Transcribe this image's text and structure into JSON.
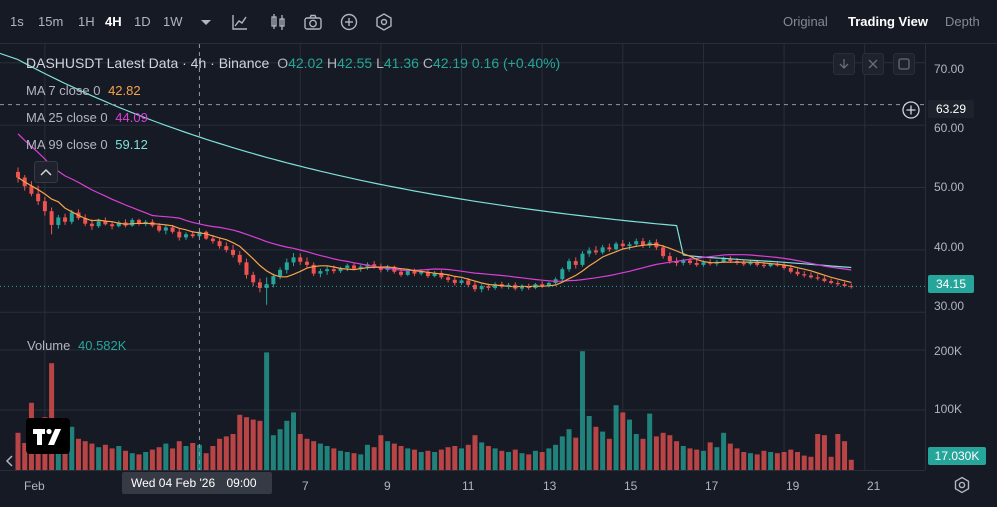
{
  "toolbar": {
    "timeframes": [
      "1s",
      "15m",
      "1H",
      "4H",
      "1D",
      "1W"
    ],
    "active_timeframe": "4H",
    "icons": [
      "chevron-down-icon",
      "indicators-icon",
      "candles-icon",
      "camera-icon",
      "add-circle-icon",
      "settings-hex-icon"
    ],
    "view_tabs": [
      "Original",
      "Trading View",
      "Depth"
    ],
    "active_view": "Trading View"
  },
  "legend": {
    "symbol_title": "DASHUSDT Latest Data · 4h · Binance",
    "ohlc": {
      "o_label": "O",
      "o": "42.02",
      "h_label": "H",
      "h": "42.55",
      "l_label": "L",
      "l": "41.36",
      "c_label": "C",
      "c": "42.19",
      "change": "0.16 (+0.40%)"
    },
    "ma7": {
      "label": "MA 7 close 0",
      "value": "42.82",
      "color": "#f7a34a"
    },
    "ma25": {
      "label": "MA 25 close 0",
      "value": "44.09",
      "color": "#d940d6"
    },
    "ma99": {
      "label": "MA 99 close 0",
      "value": "59.12",
      "color": "#7fe0d8"
    },
    "volume": {
      "label": "Volume",
      "value": "40.582K"
    }
  },
  "price_axis": {
    "ticks": [
      "70.00",
      "60.00",
      "50.00",
      "40.00",
      "30.00"
    ],
    "crosshair_price": "63.29",
    "last_price": "34.15",
    "last_price_color": "#26a69a"
  },
  "volume_axis": {
    "ticks": [
      "200K",
      "100K"
    ],
    "last_volume": "17.030K"
  },
  "time_axis": {
    "labels": [
      "Feb",
      "7",
      "9",
      "11",
      "13",
      "15",
      "17",
      "19",
      "21"
    ],
    "crosshair_time": "Wed 04 Feb '26",
    "crosshair_clock": "09:00"
  },
  "colors": {
    "up": "#26a69a",
    "down": "#ef5350",
    "background": "#161a25",
    "grid": "#2a2e39"
  },
  "chart_data": {
    "type": "candlestick",
    "symbol": "DASHUSDT",
    "interval": "4h",
    "exchange": "Binance",
    "y_range": [
      27,
      73
    ],
    "volume_range": [
      0,
      210000
    ],
    "date_ticks": [
      {
        "label": "Feb",
        "index": 4
      },
      {
        "label": "7",
        "index": 42
      },
      {
        "label": "9",
        "index": 54
      },
      {
        "label": "11",
        "index": 66
      },
      {
        "label": "13",
        "index": 78
      },
      {
        "label": "15",
        "index": 90
      },
      {
        "label": "17",
        "index": 102
      },
      {
        "label": "19",
        "index": 114
      },
      {
        "label": "21",
        "index": 126
      }
    ],
    "crosshair": {
      "index": 27,
      "price": 63.29
    },
    "candles": [
      {
        "o": 52.5,
        "h": 53.2,
        "l": 50.8,
        "c": 51.6,
        "v": 62000
      },
      {
        "o": 51.6,
        "h": 52.0,
        "l": 49.5,
        "c": 50.2,
        "v": 45000
      },
      {
        "o": 50.2,
        "h": 51.0,
        "l": 48.6,
        "c": 49.0,
        "v": 112000
      },
      {
        "o": 49.0,
        "h": 50.3,
        "l": 47.2,
        "c": 47.8,
        "v": 58000
      },
      {
        "o": 47.8,
        "h": 48.5,
        "l": 45.5,
        "c": 46.2,
        "v": 88000
      },
      {
        "o": 46.2,
        "h": 46.8,
        "l": 42.5,
        "c": 44.0,
        "v": 178000
      },
      {
        "o": 44.0,
        "h": 45.6,
        "l": 43.4,
        "c": 45.2,
        "v": 60000
      },
      {
        "o": 45.2,
        "h": 45.8,
        "l": 44.0,
        "c": 44.5,
        "v": 48000
      },
      {
        "o": 44.5,
        "h": 46.4,
        "l": 44.1,
        "c": 46.0,
        "v": 72000
      },
      {
        "o": 46.0,
        "h": 46.5,
        "l": 44.8,
        "c": 45.1,
        "v": 52000
      },
      {
        "o": 45.1,
        "h": 45.7,
        "l": 43.8,
        "c": 44.2,
        "v": 48000
      },
      {
        "o": 44.2,
        "h": 44.9,
        "l": 43.2,
        "c": 43.8,
        "v": 44000
      },
      {
        "o": 43.8,
        "h": 45.0,
        "l": 43.5,
        "c": 44.6,
        "v": 38000
      },
      {
        "o": 44.6,
        "h": 45.2,
        "l": 43.9,
        "c": 44.1,
        "v": 42000
      },
      {
        "o": 44.1,
        "h": 44.6,
        "l": 43.3,
        "c": 43.8,
        "v": 36000
      },
      {
        "o": 43.8,
        "h": 44.7,
        "l": 43.6,
        "c": 44.4,
        "v": 40000
      },
      {
        "o": 44.4,
        "h": 44.9,
        "l": 43.6,
        "c": 43.9,
        "v": 32000
      },
      {
        "o": 43.9,
        "h": 45.1,
        "l": 43.7,
        "c": 44.8,
        "v": 28000
      },
      {
        "o": 44.8,
        "h": 45.0,
        "l": 43.9,
        "c": 44.2,
        "v": 26000
      },
      {
        "o": 44.2,
        "h": 44.8,
        "l": 43.8,
        "c": 44.5,
        "v": 30000
      },
      {
        "o": 44.5,
        "h": 44.9,
        "l": 43.6,
        "c": 43.9,
        "v": 34000
      },
      {
        "o": 43.9,
        "h": 44.3,
        "l": 42.8,
        "c": 43.1,
        "v": 38000
      },
      {
        "o": 43.1,
        "h": 43.9,
        "l": 42.5,
        "c": 43.6,
        "v": 44000
      },
      {
        "o": 43.6,
        "h": 44.0,
        "l": 42.6,
        "c": 42.9,
        "v": 36000
      },
      {
        "o": 42.9,
        "h": 43.4,
        "l": 41.5,
        "c": 42.0,
        "v": 48000
      },
      {
        "o": 42.0,
        "h": 42.8,
        "l": 41.6,
        "c": 42.5,
        "v": 40000
      },
      {
        "o": 42.5,
        "h": 43.0,
        "l": 41.9,
        "c": 42.2,
        "v": 45000
      },
      {
        "o": 42.2,
        "h": 43.2,
        "l": 42.0,
        "c": 42.9,
        "v": 42000
      },
      {
        "o": 42.9,
        "h": 43.1,
        "l": 41.6,
        "c": 41.8,
        "v": 28000
      },
      {
        "o": 41.8,
        "h": 42.4,
        "l": 41.0,
        "c": 41.4,
        "v": 40000
      },
      {
        "o": 41.4,
        "h": 41.9,
        "l": 40.2,
        "c": 40.6,
        "v": 52000
      },
      {
        "o": 40.6,
        "h": 41.2,
        "l": 39.6,
        "c": 40.0,
        "v": 56000
      },
      {
        "o": 40.0,
        "h": 40.8,
        "l": 38.8,
        "c": 39.2,
        "v": 60000
      },
      {
        "o": 39.2,
        "h": 39.8,
        "l": 37.6,
        "c": 38.0,
        "v": 92000
      },
      {
        "o": 38.0,
        "h": 38.6,
        "l": 35.4,
        "c": 36.0,
        "v": 88000
      },
      {
        "o": 36.0,
        "h": 36.5,
        "l": 34.2,
        "c": 34.8,
        "v": 84000
      },
      {
        "o": 34.8,
        "h": 35.4,
        "l": 33.2,
        "c": 33.9,
        "v": 82000
      },
      {
        "o": 33.9,
        "h": 35.6,
        "l": 31.2,
        "c": 34.5,
        "v": 196000
      },
      {
        "o": 34.5,
        "h": 36.2,
        "l": 34.0,
        "c": 35.8,
        "v": 58000
      },
      {
        "o": 35.8,
        "h": 37.2,
        "l": 35.3,
        "c": 36.8,
        "v": 68000
      },
      {
        "o": 36.8,
        "h": 38.6,
        "l": 36.2,
        "c": 38.0,
        "v": 82000
      },
      {
        "o": 38.0,
        "h": 39.5,
        "l": 37.4,
        "c": 38.8,
        "v": 96000
      },
      {
        "o": 38.8,
        "h": 39.4,
        "l": 37.6,
        "c": 38.1,
        "v": 60000
      },
      {
        "o": 38.1,
        "h": 38.8,
        "l": 37.2,
        "c": 37.6,
        "v": 52000
      },
      {
        "o": 37.6,
        "h": 38.0,
        "l": 35.8,
        "c": 36.2,
        "v": 48000
      },
      {
        "o": 36.2,
        "h": 37.0,
        "l": 35.6,
        "c": 36.6,
        "v": 44000
      },
      {
        "o": 36.6,
        "h": 37.4,
        "l": 36.0,
        "c": 36.9,
        "v": 40000
      },
      {
        "o": 36.9,
        "h": 37.5,
        "l": 36.2,
        "c": 36.6,
        "v": 36000
      },
      {
        "o": 36.6,
        "h": 37.3,
        "l": 36.3,
        "c": 37.1,
        "v": 32000
      },
      {
        "o": 37.1,
        "h": 37.8,
        "l": 36.6,
        "c": 37.5,
        "v": 30000
      },
      {
        "o": 37.5,
        "h": 37.9,
        "l": 36.8,
        "c": 37.0,
        "v": 28000
      },
      {
        "o": 37.0,
        "h": 37.6,
        "l": 36.5,
        "c": 37.3,
        "v": 26000
      },
      {
        "o": 37.3,
        "h": 38.0,
        "l": 36.8,
        "c": 37.7,
        "v": 42000
      },
      {
        "o": 37.7,
        "h": 38.2,
        "l": 37.0,
        "c": 37.3,
        "v": 38000
      },
      {
        "o": 37.3,
        "h": 37.8,
        "l": 36.4,
        "c": 36.8,
        "v": 58000
      },
      {
        "o": 36.8,
        "h": 37.6,
        "l": 36.5,
        "c": 37.3,
        "v": 48000
      },
      {
        "o": 37.3,
        "h": 37.5,
        "l": 36.2,
        "c": 36.5,
        "v": 44000
      },
      {
        "o": 36.5,
        "h": 37.1,
        "l": 35.7,
        "c": 36.0,
        "v": 40000
      },
      {
        "o": 36.0,
        "h": 36.8,
        "l": 35.8,
        "c": 36.6,
        "v": 36000
      },
      {
        "o": 36.6,
        "h": 37.0,
        "l": 35.8,
        "c": 36.2,
        "v": 34000
      },
      {
        "o": 36.2,
        "h": 36.9,
        "l": 35.9,
        "c": 36.5,
        "v": 30000
      },
      {
        "o": 36.5,
        "h": 36.8,
        "l": 35.5,
        "c": 35.8,
        "v": 32000
      },
      {
        "o": 35.8,
        "h": 36.6,
        "l": 35.6,
        "c": 36.3,
        "v": 30000
      },
      {
        "o": 36.3,
        "h": 36.7,
        "l": 35.3,
        "c": 35.6,
        "v": 34000
      },
      {
        "o": 35.6,
        "h": 36.0,
        "l": 34.8,
        "c": 35.2,
        "v": 38000
      },
      {
        "o": 35.2,
        "h": 35.7,
        "l": 34.3,
        "c": 34.7,
        "v": 40000
      },
      {
        "o": 34.7,
        "h": 35.4,
        "l": 34.4,
        "c": 35.1,
        "v": 36000
      },
      {
        "o": 35.1,
        "h": 35.5,
        "l": 34.0,
        "c": 34.4,
        "v": 42000
      },
      {
        "o": 34.4,
        "h": 34.9,
        "l": 33.3,
        "c": 33.7,
        "v": 58000
      },
      {
        "o": 33.7,
        "h": 34.5,
        "l": 33.2,
        "c": 34.2,
        "v": 46000
      },
      {
        "o": 34.2,
        "h": 34.6,
        "l": 33.5,
        "c": 33.9,
        "v": 40000
      },
      {
        "o": 33.9,
        "h": 34.8,
        "l": 33.6,
        "c": 34.5,
        "v": 36000
      },
      {
        "o": 34.5,
        "h": 34.9,
        "l": 33.8,
        "c": 34.1,
        "v": 32000
      },
      {
        "o": 34.1,
        "h": 34.7,
        "l": 33.7,
        "c": 34.4,
        "v": 30000
      },
      {
        "o": 34.4,
        "h": 34.8,
        "l": 33.5,
        "c": 33.8,
        "v": 34000
      },
      {
        "o": 33.8,
        "h": 34.5,
        "l": 33.4,
        "c": 34.2,
        "v": 28000
      },
      {
        "o": 34.2,
        "h": 34.6,
        "l": 33.6,
        "c": 33.9,
        "v": 26000
      },
      {
        "o": 33.9,
        "h": 34.7,
        "l": 33.7,
        "c": 34.5,
        "v": 32000
      },
      {
        "o": 34.5,
        "h": 35.0,
        "l": 33.9,
        "c": 34.2,
        "v": 30000
      },
      {
        "o": 34.2,
        "h": 34.9,
        "l": 34.0,
        "c": 34.7,
        "v": 36000
      },
      {
        "o": 34.7,
        "h": 35.6,
        "l": 34.4,
        "c": 35.3,
        "v": 42000
      },
      {
        "o": 35.3,
        "h": 37.2,
        "l": 35.0,
        "c": 36.9,
        "v": 56000
      },
      {
        "o": 36.9,
        "h": 38.6,
        "l": 36.5,
        "c": 38.2,
        "v": 68000
      },
      {
        "o": 38.2,
        "h": 38.8,
        "l": 37.0,
        "c": 37.6,
        "v": 54000
      },
      {
        "o": 37.6,
        "h": 39.8,
        "l": 37.3,
        "c": 39.4,
        "v": 198000
      },
      {
        "o": 39.4,
        "h": 40.4,
        "l": 38.9,
        "c": 39.9,
        "v": 90000
      },
      {
        "o": 39.9,
        "h": 40.6,
        "l": 39.2,
        "c": 39.6,
        "v": 72000
      },
      {
        "o": 39.6,
        "h": 40.8,
        "l": 39.3,
        "c": 40.4,
        "v": 64000
      },
      {
        "o": 40.4,
        "h": 41.0,
        "l": 39.7,
        "c": 40.1,
        "v": 52000
      },
      {
        "o": 40.1,
        "h": 41.3,
        "l": 39.9,
        "c": 41.0,
        "v": 108000
      },
      {
        "o": 41.0,
        "h": 41.6,
        "l": 40.2,
        "c": 40.6,
        "v": 96000
      },
      {
        "o": 40.6,
        "h": 41.3,
        "l": 40.0,
        "c": 40.9,
        "v": 84000
      },
      {
        "o": 40.9,
        "h": 41.8,
        "l": 40.5,
        "c": 41.4,
        "v": 60000
      },
      {
        "o": 41.4,
        "h": 41.9,
        "l": 40.3,
        "c": 40.7,
        "v": 52000
      },
      {
        "o": 40.7,
        "h": 41.6,
        "l": 40.3,
        "c": 41.2,
        "v": 94000
      },
      {
        "o": 41.2,
        "h": 41.7,
        "l": 40.0,
        "c": 40.4,
        "v": 56000
      },
      {
        "o": 40.4,
        "h": 40.8,
        "l": 38.6,
        "c": 39.0,
        "v": 62000
      },
      {
        "o": 39.0,
        "h": 39.6,
        "l": 37.8,
        "c": 38.2,
        "v": 58000
      },
      {
        "o": 38.2,
        "h": 38.8,
        "l": 37.4,
        "c": 37.9,
        "v": 48000
      },
      {
        "o": 37.9,
        "h": 38.6,
        "l": 37.5,
        "c": 38.3,
        "v": 40000
      },
      {
        "o": 38.3,
        "h": 38.7,
        "l": 37.6,
        "c": 37.9,
        "v": 36000
      },
      {
        "o": 37.9,
        "h": 38.4,
        "l": 37.3,
        "c": 37.6,
        "v": 34000
      },
      {
        "o": 37.6,
        "h": 38.3,
        "l": 37.3,
        "c": 38.0,
        "v": 32000
      },
      {
        "o": 38.0,
        "h": 38.5,
        "l": 37.5,
        "c": 37.8,
        "v": 46000
      },
      {
        "o": 37.8,
        "h": 38.4,
        "l": 37.4,
        "c": 38.1,
        "v": 38000
      },
      {
        "o": 38.1,
        "h": 38.9,
        "l": 37.9,
        "c": 38.6,
        "v": 62000
      },
      {
        "o": 38.6,
        "h": 39.0,
        "l": 37.9,
        "c": 38.2,
        "v": 44000
      },
      {
        "o": 38.2,
        "h": 38.7,
        "l": 37.6,
        "c": 37.9,
        "v": 36000
      },
      {
        "o": 37.9,
        "h": 38.4,
        "l": 37.4,
        "c": 37.7,
        "v": 30000
      },
      {
        "o": 37.7,
        "h": 38.3,
        "l": 37.5,
        "c": 38.0,
        "v": 28000
      },
      {
        "o": 38.0,
        "h": 38.4,
        "l": 37.3,
        "c": 37.6,
        "v": 26000
      },
      {
        "o": 37.6,
        "h": 38.0,
        "l": 37.1,
        "c": 37.4,
        "v": 32000
      },
      {
        "o": 37.4,
        "h": 38.0,
        "l": 37.2,
        "c": 37.8,
        "v": 30000
      },
      {
        "o": 37.8,
        "h": 38.2,
        "l": 37.3,
        "c": 37.5,
        "v": 28000
      },
      {
        "o": 37.5,
        "h": 37.9,
        "l": 36.8,
        "c": 37.1,
        "v": 30000
      },
      {
        "o": 37.1,
        "h": 37.6,
        "l": 36.2,
        "c": 36.5,
        "v": 34000
      },
      {
        "o": 36.5,
        "h": 37.0,
        "l": 35.8,
        "c": 36.1,
        "v": 30000
      },
      {
        "o": 36.1,
        "h": 36.6,
        "l": 35.6,
        "c": 35.9,
        "v": 24000
      },
      {
        "o": 35.9,
        "h": 36.4,
        "l": 35.4,
        "c": 35.6,
        "v": 22000
      },
      {
        "o": 35.6,
        "h": 36.1,
        "l": 35.1,
        "c": 35.4,
        "v": 60000
      },
      {
        "o": 35.4,
        "h": 35.8,
        "l": 34.8,
        "c": 35.0,
        "v": 58000
      },
      {
        "o": 35.0,
        "h": 35.4,
        "l": 34.5,
        "c": 34.7,
        "v": 22000
      },
      {
        "o": 34.7,
        "h": 35.1,
        "l": 34.2,
        "c": 34.5,
        "v": 60000
      },
      {
        "o": 34.5,
        "h": 34.9,
        "l": 34.0,
        "c": 34.2,
        "v": 48000
      },
      {
        "o": 34.2,
        "h": 34.6,
        "l": 33.8,
        "c": 34.15,
        "v": 17030
      }
    ]
  }
}
